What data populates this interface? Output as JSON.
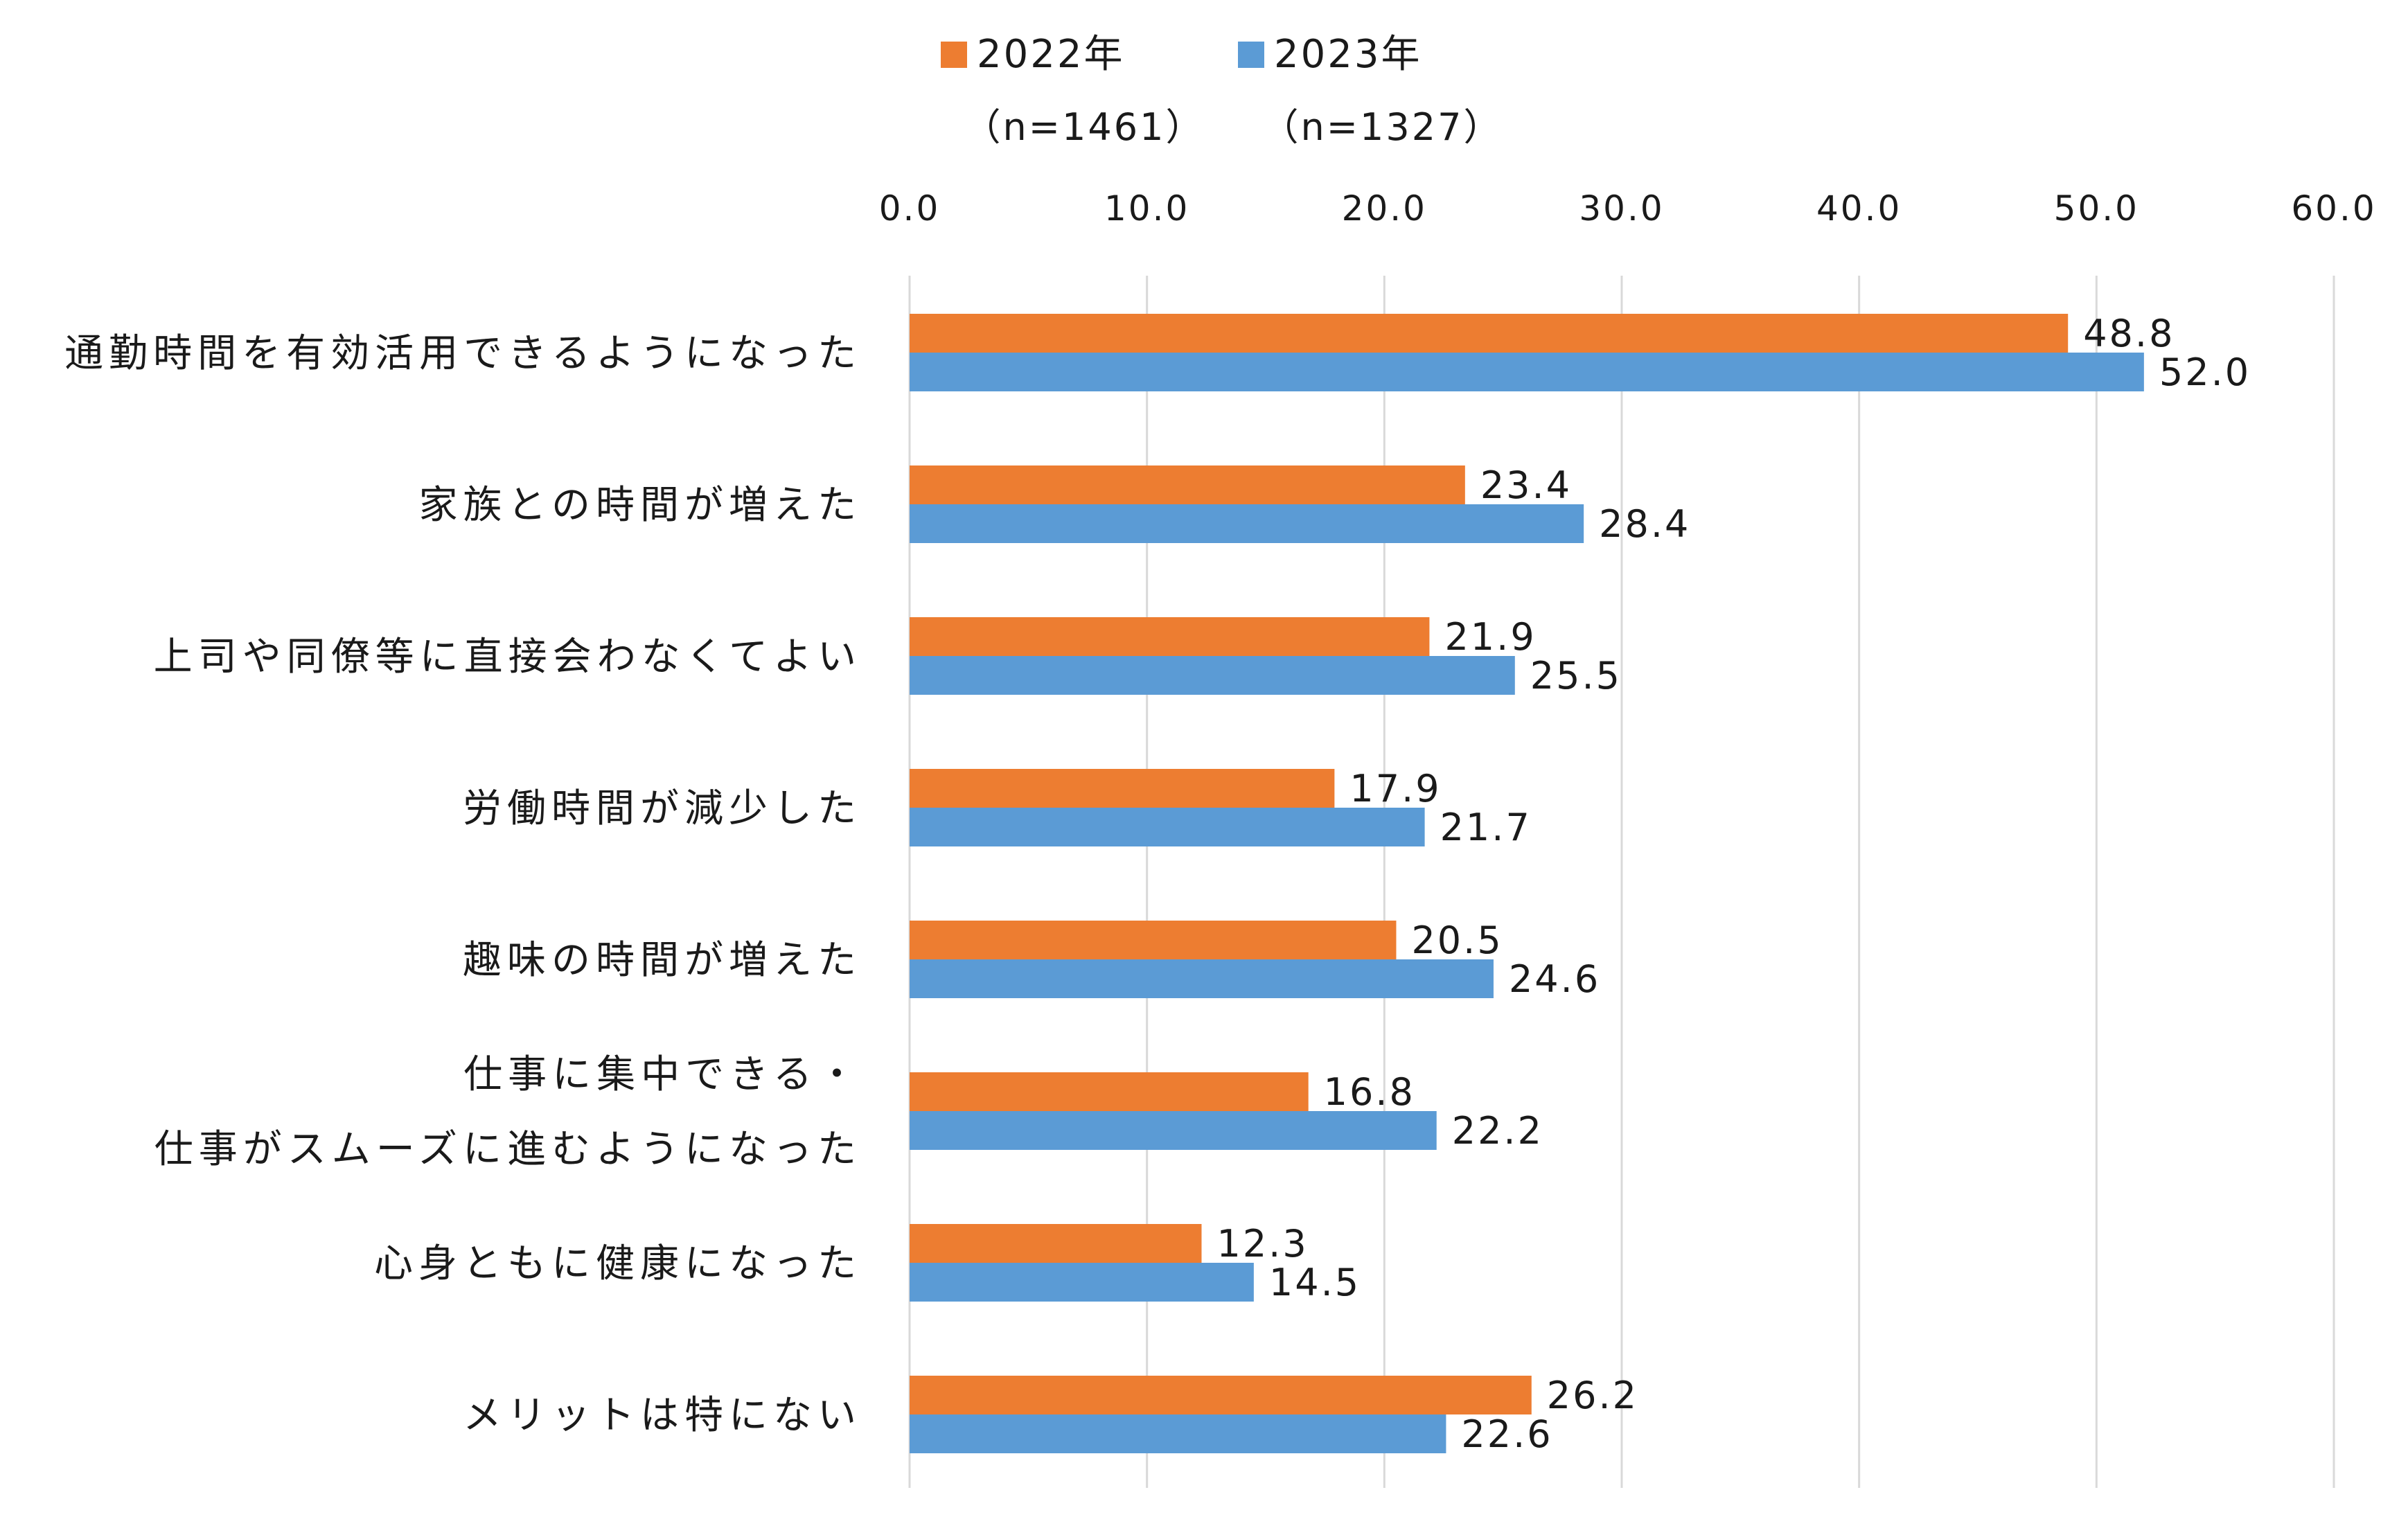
{
  "chart_data": {
    "type": "bar",
    "orientation": "horizontal",
    "categories": [
      [
        "通勤時間を有効活用できるようになった"
      ],
      [
        "家族との時間が増えた"
      ],
      [
        "上司や同僚等に直接会わなくてよい"
      ],
      [
        "労働時間が減少した"
      ],
      [
        "趣味の時間が増えた"
      ],
      [
        "仕事に集中できる・",
        "仕事がスムーズに進むようになった"
      ],
      [
        "心身ともに健康になった"
      ],
      [
        "メリットは特にない"
      ]
    ],
    "series": [
      {
        "name": "2022年",
        "n_label": "（n=1461）",
        "color": "#ED7D31",
        "values": [
          48.8,
          23.4,
          21.9,
          17.9,
          20.5,
          16.8,
          12.3,
          26.2
        ]
      },
      {
        "name": "2023年",
        "n_label": "（n=1327）",
        "color": "#5B9BD5",
        "values": [
          52.0,
          28.4,
          25.5,
          21.7,
          24.6,
          22.2,
          14.5,
          22.6
        ]
      }
    ],
    "xlim": [
      0,
      60
    ],
    "xticks": [
      0,
      10,
      20,
      30,
      40,
      50,
      60
    ],
    "tick_format_decimals": 1,
    "axis_position": "top",
    "grid": true,
    "legend": "top-center",
    "data_labels": true
  }
}
